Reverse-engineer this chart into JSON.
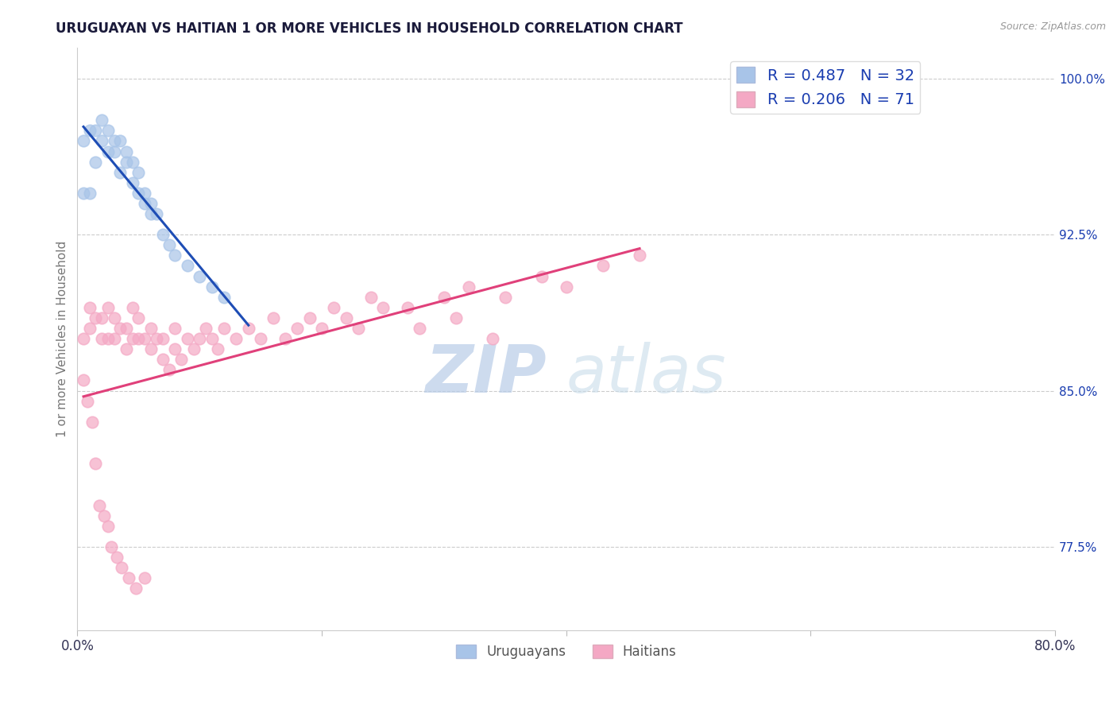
{
  "title": "URUGUAYAN VS HAITIAN 1 OR MORE VEHICLES IN HOUSEHOLD CORRELATION CHART",
  "source": "Source: ZipAtlas.com",
  "ylabel": "1 or more Vehicles in Household",
  "xlim": [
    0.0,
    0.8
  ],
  "ylim": [
    0.735,
    1.015
  ],
  "xtick_vals": [
    0.0,
    0.2,
    0.4,
    0.6,
    0.8
  ],
  "xtick_labels": [
    "0.0%",
    "",
    "",
    "",
    "80.0%"
  ],
  "ytick_right_labels": [
    "100.0%",
    "92.5%",
    "85.0%",
    "77.5%"
  ],
  "ytick_right_vals": [
    1.0,
    0.925,
    0.85,
    0.775
  ],
  "uruguayan_R": 0.487,
  "uruguayan_N": 32,
  "haitian_R": 0.206,
  "haitian_N": 71,
  "uruguayan_color": "#a8c4e8",
  "haitian_color": "#f4a8c4",
  "uruguayan_line_color": "#1e4db5",
  "haitian_line_color": "#e0407a",
  "legend_text_color": "#1a3db0",
  "title_color": "#1a1a3a",
  "source_color": "#999999",
  "background_color": "#ffffff",
  "watermark_zip_color": "#b8cce4",
  "watermark_atlas_color": "#c8dcea",
  "uruguayan_x": [
    0.005,
    0.01,
    0.015,
    0.02,
    0.02,
    0.025,
    0.025,
    0.03,
    0.03,
    0.035,
    0.035,
    0.04,
    0.04,
    0.045,
    0.045,
    0.05,
    0.05,
    0.055,
    0.055,
    0.06,
    0.06,
    0.065,
    0.07,
    0.075,
    0.08,
    0.09,
    0.1,
    0.11,
    0.12,
    0.005,
    0.01,
    0.015
  ],
  "uruguayan_y": [
    0.97,
    0.975,
    0.975,
    0.97,
    0.98,
    0.965,
    0.975,
    0.965,
    0.97,
    0.955,
    0.97,
    0.96,
    0.965,
    0.95,
    0.96,
    0.945,
    0.955,
    0.94,
    0.945,
    0.935,
    0.94,
    0.935,
    0.925,
    0.92,
    0.915,
    0.91,
    0.905,
    0.9,
    0.895,
    0.945,
    0.945,
    0.96
  ],
  "haitian_x": [
    0.005,
    0.01,
    0.01,
    0.015,
    0.02,
    0.02,
    0.025,
    0.025,
    0.03,
    0.03,
    0.035,
    0.04,
    0.04,
    0.045,
    0.045,
    0.05,
    0.05,
    0.055,
    0.06,
    0.06,
    0.065,
    0.07,
    0.07,
    0.075,
    0.08,
    0.08,
    0.085,
    0.09,
    0.095,
    0.1,
    0.105,
    0.11,
    0.115,
    0.12,
    0.13,
    0.14,
    0.15,
    0.16,
    0.17,
    0.18,
    0.19,
    0.2,
    0.21,
    0.22,
    0.23,
    0.24,
    0.25,
    0.27,
    0.3,
    0.32,
    0.35,
    0.38,
    0.4,
    0.43,
    0.46,
    0.28,
    0.31,
    0.34,
    0.005,
    0.008,
    0.012,
    0.015,
    0.018,
    0.022,
    0.025,
    0.028,
    0.032,
    0.036,
    0.042,
    0.048,
    0.055
  ],
  "haitian_y": [
    0.875,
    0.88,
    0.89,
    0.885,
    0.875,
    0.885,
    0.875,
    0.89,
    0.875,
    0.885,
    0.88,
    0.87,
    0.88,
    0.875,
    0.89,
    0.875,
    0.885,
    0.875,
    0.87,
    0.88,
    0.875,
    0.865,
    0.875,
    0.86,
    0.87,
    0.88,
    0.865,
    0.875,
    0.87,
    0.875,
    0.88,
    0.875,
    0.87,
    0.88,
    0.875,
    0.88,
    0.875,
    0.885,
    0.875,
    0.88,
    0.885,
    0.88,
    0.89,
    0.885,
    0.88,
    0.895,
    0.89,
    0.89,
    0.895,
    0.9,
    0.895,
    0.905,
    0.9,
    0.91,
    0.915,
    0.88,
    0.885,
    0.875,
    0.855,
    0.845,
    0.835,
    0.815,
    0.795,
    0.79,
    0.785,
    0.775,
    0.77,
    0.765,
    0.76,
    0.755,
    0.76
  ]
}
